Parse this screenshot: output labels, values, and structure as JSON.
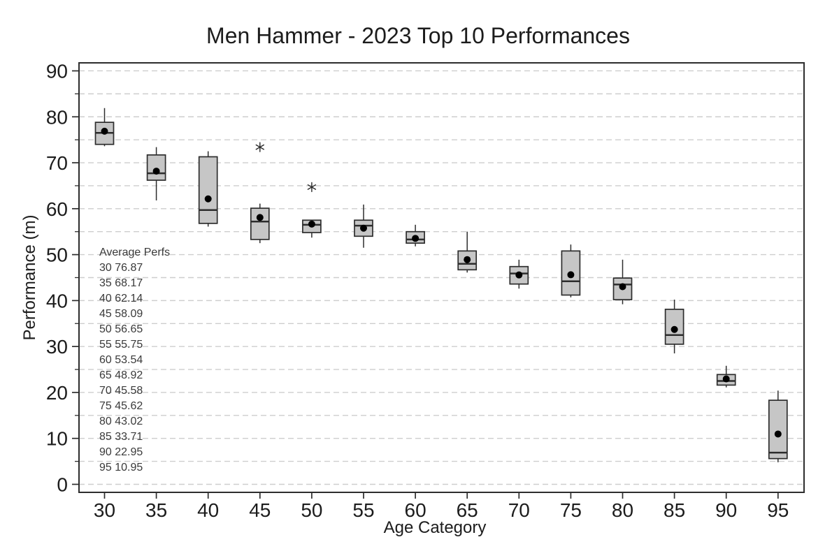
{
  "chart_data": {
    "type": "boxplot",
    "title": "Men Hammer - 2023 Top 10 Performances",
    "xlabel": "Age Category",
    "ylabel": "Performance (m)",
    "ylim": [
      0,
      90
    ],
    "y_major_tick_step": 10,
    "y_minor_tick_step": 5,
    "y_major_ticks": [
      0,
      10,
      20,
      30,
      40,
      50,
      60,
      70,
      80,
      90
    ],
    "grid": "horizontal dashed every 5",
    "legend_position": "none",
    "categories": [
      30,
      35,
      40,
      45,
      50,
      55,
      60,
      65,
      70,
      75,
      80,
      85,
      90,
      95
    ],
    "series": [
      {
        "category": 30,
        "whisker_low": 73.6,
        "q1": 74.0,
        "median": 76.5,
        "q3": 78.8,
        "whisker_high": 81.9,
        "mean": 76.87,
        "outliers": []
      },
      {
        "category": 35,
        "whisker_low": 61.8,
        "q1": 66.2,
        "median": 67.7,
        "q3": 71.7,
        "whisker_high": 73.4,
        "mean": 68.17,
        "outliers": []
      },
      {
        "category": 40,
        "whisker_low": 56.1,
        "q1": 56.8,
        "median": 59.7,
        "q3": 71.3,
        "whisker_high": 72.5,
        "mean": 62.14,
        "outliers": []
      },
      {
        "category": 45,
        "whisker_low": 52.5,
        "q1": 53.3,
        "median": 57.2,
        "q3": 60.1,
        "whisker_high": 61.1,
        "mean": 58.09,
        "outliers": [
          73.4
        ]
      },
      {
        "category": 50,
        "whisker_low": 53.7,
        "q1": 54.8,
        "median": 56.5,
        "q3": 57.5,
        "whisker_high": 57.5,
        "mean": 56.65,
        "outliers": [
          64.7
        ]
      },
      {
        "category": 55,
        "whisker_low": 51.5,
        "q1": 54.0,
        "median": 56.3,
        "q3": 57.5,
        "whisker_high": 60.9,
        "mean": 55.75,
        "outliers": []
      },
      {
        "category": 60,
        "whisker_low": 51.8,
        "q1": 52.5,
        "median": 53.3,
        "q3": 55.0,
        "whisker_high": 56.5,
        "mean": 53.54,
        "outliers": []
      },
      {
        "category": 65,
        "whisker_low": 46.1,
        "q1": 46.7,
        "median": 48.0,
        "q3": 50.8,
        "whisker_high": 55.0,
        "mean": 48.92,
        "outliers": []
      },
      {
        "category": 70,
        "whisker_low": 42.6,
        "q1": 43.6,
        "median": 45.9,
        "q3": 47.4,
        "whisker_high": 48.9,
        "mean": 45.58,
        "outliers": []
      },
      {
        "category": 75,
        "whisker_low": 40.7,
        "q1": 41.2,
        "median": 44.2,
        "q3": 50.8,
        "whisker_high": 52.2,
        "mean": 45.62,
        "outliers": []
      },
      {
        "category": 80,
        "whisker_low": 39.2,
        "q1": 40.2,
        "median": 43.5,
        "q3": 44.9,
        "whisker_high": 48.9,
        "mean": 43.02,
        "outliers": []
      },
      {
        "category": 85,
        "whisker_low": 28.5,
        "q1": 30.5,
        "median": 32.5,
        "q3": 38.1,
        "whisker_high": 40.2,
        "mean": 33.71,
        "outliers": []
      },
      {
        "category": 90,
        "whisker_low": 21.1,
        "q1": 21.6,
        "median": 22.5,
        "q3": 23.9,
        "whisker_high": 25.8,
        "mean": 22.95,
        "outliers": []
      },
      {
        "category": 95,
        "whisker_low": 4.8,
        "q1": 5.6,
        "median": 6.9,
        "q3": 18.3,
        "whisker_high": 20.4,
        "mean": 10.95,
        "outliers": []
      }
    ],
    "annotation": {
      "header": "Average Perfs",
      "rows": [
        "30 76.87",
        "35 68.17",
        "40 62.14",
        "45 58.09",
        "50 56.65",
        "55 55.75",
        "60 53.54",
        "65 48.92",
        "70 45.58",
        "75 45.62",
        "80 43.02",
        "85 33.71",
        "90 22.95",
        "95 10.95"
      ]
    },
    "colors": {
      "box_fill": "#c6c6c6",
      "box_stroke": "#2d2d2d",
      "median_line": "#2d2d2d",
      "mean_dot": "#000000",
      "outlier": "#2a2a2a",
      "gridline": "#cecece",
      "frame": "#2d2d2d",
      "text": "#1c1c1c",
      "annotation_text": "#3a3a3a",
      "background": "#ffffff"
    }
  }
}
